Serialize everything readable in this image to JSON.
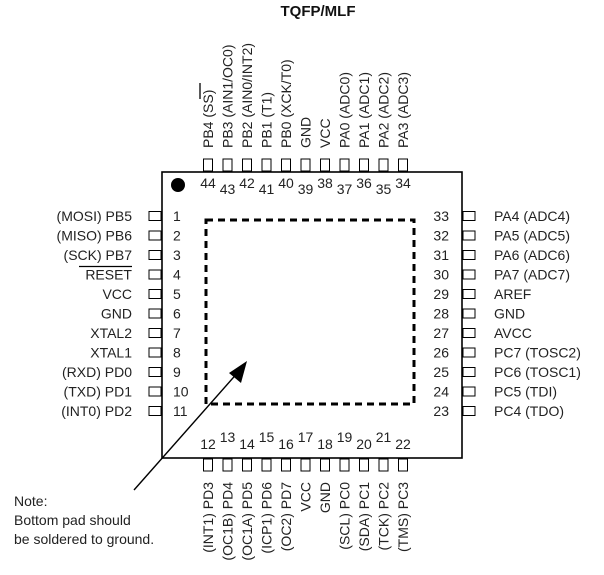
{
  "title": "TQFP/MLF",
  "left_pins": [
    {
      "num": "1",
      "label": "(MOSI)  PB5"
    },
    {
      "num": "2",
      "label": "(MISO)  PB6"
    },
    {
      "num": "3",
      "label": "(SCK)  PB7"
    },
    {
      "num": "4",
      "label": "RESET"
    },
    {
      "num": "5",
      "label": "VCC"
    },
    {
      "num": "6",
      "label": "GND"
    },
    {
      "num": "7",
      "label": "XTAL2"
    },
    {
      "num": "8",
      "label": "XTAL1"
    },
    {
      "num": "9",
      "label": "(RXD)  PD0"
    },
    {
      "num": "10",
      "label": "(TXD)  PD1"
    },
    {
      "num": "11",
      "label": "(INT0)  PD2"
    }
  ],
  "right_pins": [
    {
      "num": "33",
      "label": "PA4  (ADC4)"
    },
    {
      "num": "32",
      "label": "PA5  (ADC5)"
    },
    {
      "num": "31",
      "label": "PA6  (ADC6)"
    },
    {
      "num": "30",
      "label": "PA7  (ADC7)"
    },
    {
      "num": "29",
      "label": "AREF"
    },
    {
      "num": "28",
      "label": "GND"
    },
    {
      "num": "27",
      "label": "AVCC"
    },
    {
      "num": "26",
      "label": "PC7  (TOSC2)"
    },
    {
      "num": "25",
      "label": "PC6  (TOSC1)"
    },
    {
      "num": "24",
      "label": "PC5  (TDI)"
    },
    {
      "num": "23",
      "label": "PC4  (TDO)"
    }
  ],
  "top_pins": [
    {
      "num": "44",
      "label": "PB4  (SS)"
    },
    {
      "num": "43",
      "label": "PB3  (AIN1/OC0)"
    },
    {
      "num": "42",
      "label": "PB2  (AIN0/INT2)"
    },
    {
      "num": "41",
      "label": "PB1  (T1)"
    },
    {
      "num": "40",
      "label": "PB0  (XCK/T0)"
    },
    {
      "num": "39",
      "label": "GND"
    },
    {
      "num": "38",
      "label": "VCC"
    },
    {
      "num": "37",
      "label": "PA0  (ADC0)"
    },
    {
      "num": "36",
      "label": "PA1  (ADC1)"
    },
    {
      "num": "35",
      "label": "PA2  (ADC2)"
    },
    {
      "num": "34",
      "label": "PA3  (ADC3)"
    }
  ],
  "bottom_pins": [
    {
      "num": "12",
      "label": "(INT1)  PD3"
    },
    {
      "num": "13",
      "label": "(OC1B)  PD4"
    },
    {
      "num": "14",
      "label": "(OC1A)  PD5"
    },
    {
      "num": "15",
      "label": "(ICP1)  PD6"
    },
    {
      "num": "16",
      "label": "(OC2)  PD7"
    },
    {
      "num": "17",
      "label": "VCC"
    },
    {
      "num": "18",
      "label": "GND"
    },
    {
      "num": "19",
      "label": "(SCL)  PC0"
    },
    {
      "num": "20",
      "label": "(SDA)  PC1"
    },
    {
      "num": "21",
      "label": "(TCK)  PC2"
    },
    {
      "num": "22",
      "label": "(TMS)  PC3"
    }
  ],
  "note": [
    "Note:",
    "Bottom pad should",
    "be soldered to ground."
  ]
}
